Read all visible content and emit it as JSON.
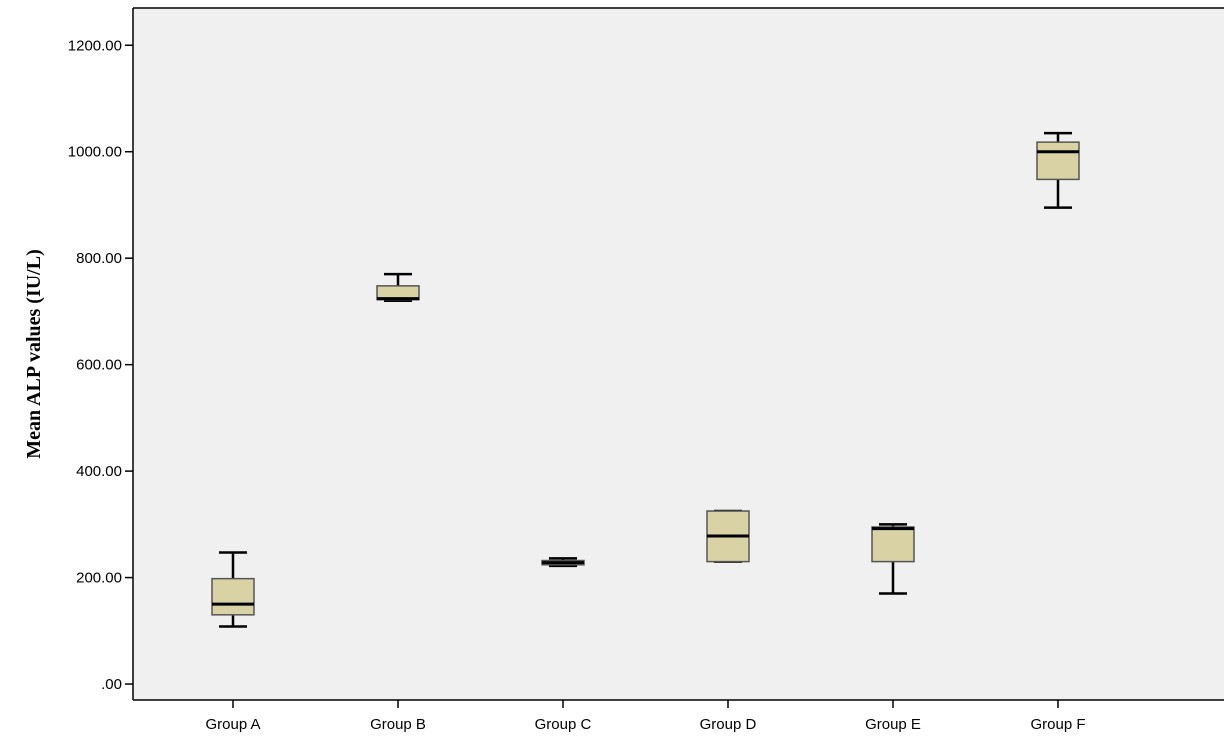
{
  "chart_data": {
    "type": "box",
    "title": "",
    "xlabel": "",
    "ylabel": "Mean ALP values (IU/L)",
    "ylim": [
      -30,
      1270
    ],
    "yticks": [
      0,
      200,
      400,
      600,
      800,
      1000,
      1200
    ],
    "ytick_labels": [
      ".00",
      "200.00",
      "400.00",
      "600.00",
      "800.00",
      "1000.00",
      "1200.00"
    ],
    "categories": [
      "Group A",
      "Group B",
      "Group C",
      "Group D",
      "Group E",
      "Group F"
    ],
    "boxes": [
      {
        "category": "Group A",
        "whisker_low": 108,
        "q1": 130,
        "median": 150,
        "q3": 198,
        "whisker_high": 247
      },
      {
        "category": "Group B",
        "whisker_low": 720,
        "q1": 722,
        "median": 724,
        "q3": 748,
        "whisker_high": 770
      },
      {
        "category": "Group C",
        "whisker_low": 222,
        "q1": 224,
        "median": 228,
        "q3": 232,
        "whisker_high": 236
      },
      {
        "category": "Group D",
        "whisker_low": 230,
        "q1": 230,
        "median": 278,
        "q3": 325,
        "whisker_high": 325
      },
      {
        "category": "Group E",
        "whisker_low": 170,
        "q1": 230,
        "median": 292,
        "q3": 295,
        "whisker_high": 300
      },
      {
        "category": "Group F",
        "whisker_low": 895,
        "q1": 948,
        "median": 1000,
        "q3": 1018,
        "whisker_high": 1035
      }
    ],
    "grid": false,
    "legend": "none",
    "colors": {
      "plot_background": "#f0f0f0",
      "box_fill": "#d8d2a4",
      "box_stroke": "#555555",
      "median": "#000000",
      "whisker": "#000000",
      "axis": "#000000"
    }
  }
}
